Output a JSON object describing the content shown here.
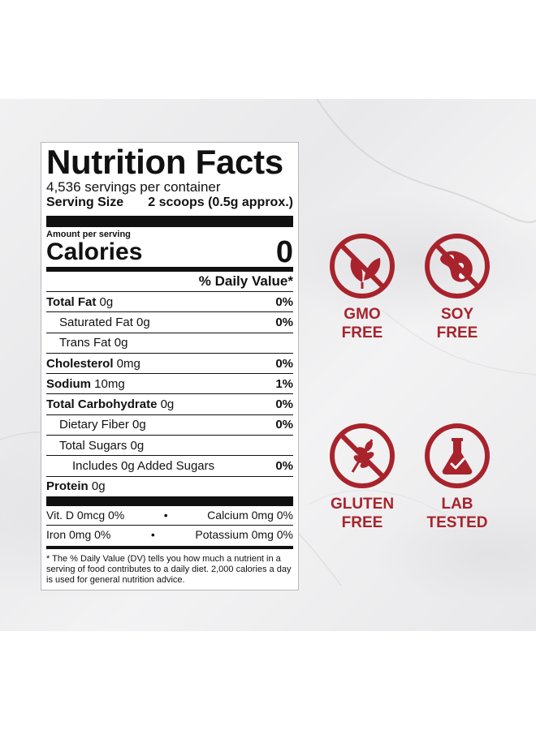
{
  "label": {
    "title": "Nutrition Facts",
    "servings": "4,536 servings per container",
    "serving_size_label": "Serving Size",
    "serving_size_value": "2 scoops (0.5g approx.)",
    "amount_per_serving": "Amount per serving",
    "calories_label": "Calories",
    "calories_value": "0",
    "daily_value_header": "% Daily Value*",
    "rows": [
      {
        "name": "Total Fat",
        "amount": " 0g",
        "pct": "0%"
      },
      {
        "name": "Saturated Fat 0g",
        "amount": "",
        "pct": "0%"
      },
      {
        "name": "Trans Fat 0g",
        "amount": "",
        "pct": ""
      },
      {
        "name": "Cholesterol",
        "amount": " 0mg",
        "pct": "0%"
      },
      {
        "name": "Sodium",
        "amount": " 10mg",
        "pct": "1%"
      },
      {
        "name": "Total Carbohydrate",
        "amount": " 0g",
        "pct": "0%"
      },
      {
        "name": "Dietary Fiber 0g",
        "amount": "",
        "pct": "0%"
      },
      {
        "name": "Total Sugars 0g",
        "amount": "",
        "pct": ""
      },
      {
        "name": "Includes 0g Added Sugars",
        "amount": "",
        "pct": "0%"
      },
      {
        "name": "Protein",
        "amount": " 0g",
        "pct": ""
      }
    ],
    "vitamins": [
      {
        "left": "Vit. D 0mcg 0%",
        "right": "Calcium 0mg 0%"
      },
      {
        "left": "Iron 0mg 0%",
        "right": "Potassium 0mg 0%"
      }
    ],
    "dot": "•",
    "footnote": "* The % Daily Value (DV) tells you how much a nutrient in a serving of food contributes to a daily diet. 2,000 calories a day is used for general nutrition advice."
  },
  "badges": [
    {
      "line1": "GMO",
      "line2": "FREE",
      "icon": "leaf-icon"
    },
    {
      "line1": "SOY",
      "line2": "FREE",
      "icon": "soybean-icon"
    },
    {
      "line1": "GLUTEN",
      "line2": "FREE",
      "icon": "wheat-icon"
    },
    {
      "line1": "LAB",
      "line2": "TESTED",
      "icon": "flask-icon"
    }
  ],
  "colors": {
    "badge_red": "#a8232c",
    "label_ink": "#111111"
  }
}
